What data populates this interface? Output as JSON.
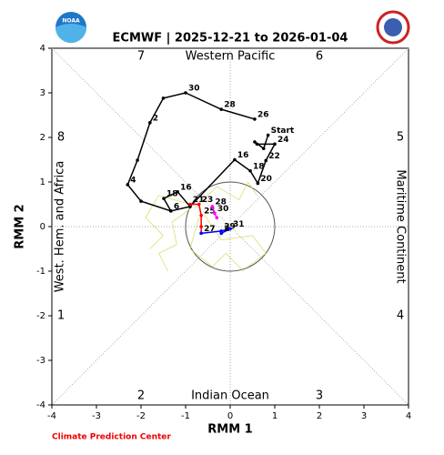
{
  "chart_data": {
    "type": "phase",
    "title": "ECMWF | 2025-12-21 to 2026-01-04",
    "xlabel": "RMM 1",
    "ylabel": "RMM 2",
    "xlim": [
      -4,
      4
    ],
    "ylim": [
      -4,
      4
    ],
    "xticks": [
      -4,
      -3,
      -2,
      -1,
      0,
      1,
      2,
      3,
      4
    ],
    "yticks": [
      -4,
      -3,
      -2,
      -1,
      0,
      1,
      2,
      3,
      4
    ],
    "regions": [
      "Western Pacific",
      "Indian Ocean",
      "West. Hem. and Africa",
      "Maritime Continent"
    ],
    "phase_labels": [
      "1",
      "2",
      "3",
      "4",
      "5",
      "6",
      "7",
      "8"
    ],
    "footer": "Climate Prediction Center",
    "series": [
      {
        "color": "#d4d44a",
        "x": [
          -0.9,
          -1.3,
          -1.2,
          -1.6,
          -1.4
        ],
        "y": [
          0.4,
          0.1,
          -0.4,
          -0.6,
          -1.0
        ]
      },
      {
        "color": "#d4d44a",
        "x": [
          -0.8,
          -0.3,
          0.2,
          0.4,
          0.6
        ],
        "y": [
          0.4,
          0.9,
          0.6,
          1.0,
          0.7
        ]
      },
      {
        "color": "#d4d44a",
        "x": [
          -0.7,
          -0.9,
          -0.4,
          -0.1,
          0.3
        ],
        "y": [
          0.2,
          -0.5,
          -0.9,
          -0.6,
          -1.0
        ]
      },
      {
        "color": "#d4d44a",
        "x": [
          -0.9,
          -1.6,
          -1.9,
          -1.5,
          -1.8
        ],
        "y": [
          0.5,
          0.7,
          0.2,
          -0.2,
          -0.5
        ]
      },
      {
        "color": "#d4d44a",
        "x": [
          -0.6,
          -0.2,
          0.5,
          0.8,
          0.4
        ],
        "y": [
          0.3,
          -0.3,
          -0.2,
          -0.6,
          -0.9
        ]
      },
      {
        "color": "#000000",
        "x": [
          0.55,
          -0.2,
          -1.0,
          -1.5,
          -1.8,
          -2.08,
          -2.3,
          -2.0,
          -1.33,
          -0.9,
          0.1,
          0.45,
          0.62,
          0.8,
          1.0,
          0.6,
          0.55,
          0.75,
          0.85
        ],
        "y": [
          2.41,
          2.63,
          3.0,
          2.88,
          2.33,
          1.49,
          0.94,
          0.57,
          0.35,
          0.45,
          1.5,
          1.25,
          0.97,
          1.48,
          1.85,
          1.85,
          1.9,
          1.75,
          2.05
        ],
        "point_labels": [
          "26",
          "28",
          "30",
          null,
          "2",
          null,
          "4",
          null,
          "6",
          null,
          "16",
          "18",
          "20",
          "22",
          "24",
          null,
          null,
          null,
          "Start"
        ]
      },
      {
        "color": "#000000",
        "x": [
          -0.9,
          -1.18,
          -1.49,
          -1.33
        ],
        "y": [
          0.45,
          0.78,
          0.63,
          0.35
        ],
        "point_labels": [
          null,
          "16",
          "18",
          null
        ]
      },
      {
        "color": "#ff0000",
        "x": [
          -0.9,
          -0.7,
          -0.65,
          -0.65,
          -0.65
        ],
        "y": [
          0.5,
          0.5,
          0.25,
          0.0,
          -0.15
        ],
        "point_labels": [
          "21",
          "23",
          "25",
          null,
          "27"
        ]
      },
      {
        "color": "#ff00ff",
        "x": [
          -0.4,
          -0.35,
          -0.3
        ],
        "y": [
          0.45,
          0.3,
          0.2
        ],
        "point_labels": [
          "28",
          "30",
          null
        ]
      },
      {
        "color": "#0000ff",
        "x": [
          -0.65,
          -0.2,
          0.0,
          -0.2
        ],
        "y": [
          -0.15,
          -0.1,
          -0.05,
          -0.15
        ],
        "point_labels": [
          null,
          "29",
          "31",
          "2"
        ]
      }
    ]
  }
}
